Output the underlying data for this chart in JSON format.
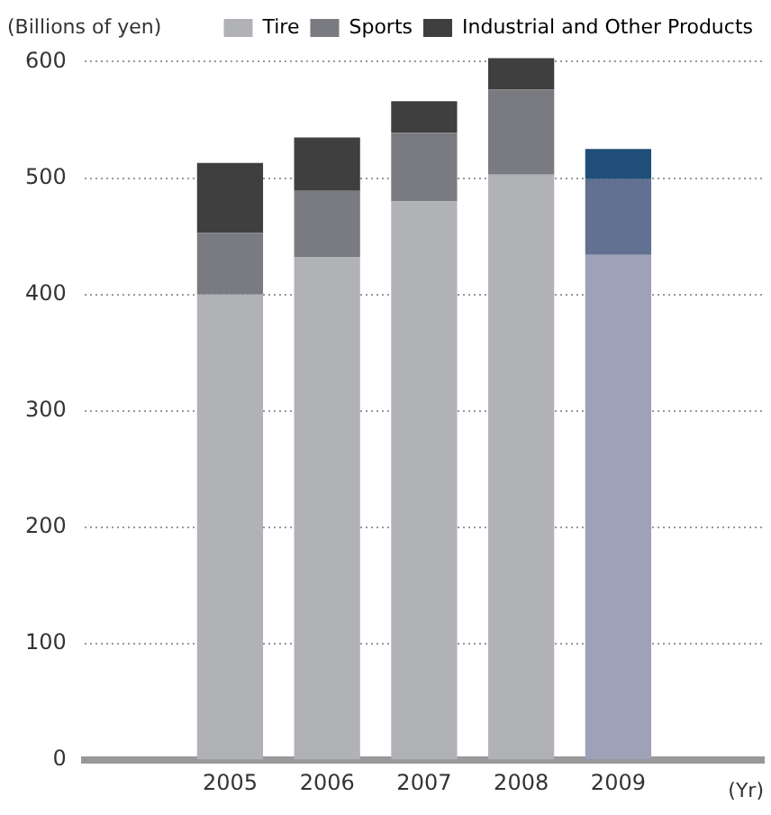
{
  "chart_data": {
    "type": "bar",
    "stacked": true,
    "ylabel": "(Billions of yen)",
    "xlabel": "(Yr)",
    "categories": [
      null,
      "2005",
      "2006",
      "2007",
      "2008",
      "2009",
      null
    ],
    "series": [
      {
        "name": "Tire",
        "color": "#b1b2b6",
        "colors": [
          "#b1b2b6",
          "#b1b2b6",
          "#b1b2b6",
          "#b1b2b6",
          "#b1b2b6",
          "#9ea1b8",
          "#b1b2b6"
        ],
        "values": [
          null,
          400,
          432,
          480,
          503,
          434,
          null
        ]
      },
      {
        "name": "Sports",
        "color": "#7a7b80",
        "colors": [
          "#7a7b80",
          "#7a7b80",
          "#7a7b80",
          "#7a7b80",
          "#7a7b80",
          "#627091",
          "#7a7b80"
        ],
        "values": [
          null,
          53,
          57,
          59,
          73,
          65,
          null
        ]
      },
      {
        "name": "Industrial and Other Products",
        "color": "#3f3f3f",
        "colors": [
          "#3f3f3f",
          "#3f3f3f",
          "#3f3f3f",
          "#3f3f3f",
          "#3f3f3f",
          "#1f4e79",
          "#3f3f3f"
        ],
        "values": [
          null,
          60,
          46,
          27,
          27,
          26,
          null
        ]
      }
    ],
    "ylim": [
      0,
      605
    ],
    "yticks": [
      0,
      100,
      200,
      300,
      400,
      500,
      600
    ],
    "grid": "y",
    "legend": "top"
  }
}
